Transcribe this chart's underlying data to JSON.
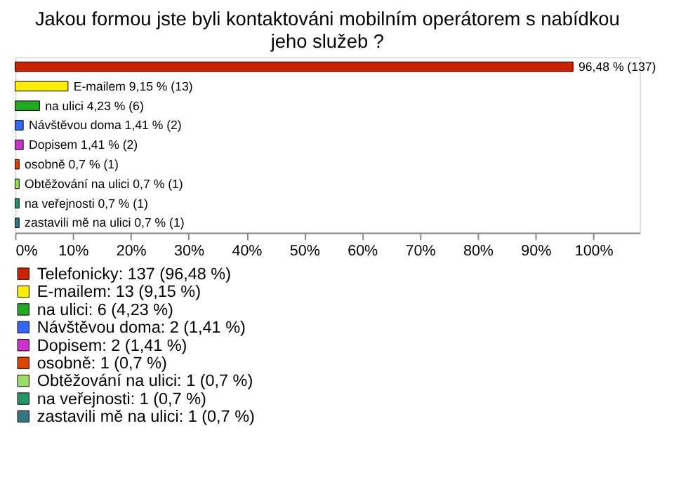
{
  "chart_data": {
    "type": "bar",
    "orientation": "horizontal",
    "stacked": true,
    "title": "Jakou formou jste byli kontaktováni mobilním operátorem s nabídkou\njeho služeb ?",
    "categories": [
      null,
      null,
      null,
      null,
      null,
      null,
      null,
      null,
      null
    ],
    "series": [
      {
        "name": "Telefonicky: 137 (96,48 %)",
        "color": "#cc2200",
        "values": [
          96.48,
          null,
          null,
          null,
          null,
          null,
          null,
          null,
          null
        ],
        "value_labels": [
          "96,48 % (137)",
          null,
          null,
          null,
          null,
          null,
          null,
          null,
          null
        ]
      },
      {
        "name": "E-mailem: 13 (9,15 %)",
        "color": "#ffee00",
        "values": [
          null,
          9.15,
          null,
          null,
          null,
          null,
          null,
          null,
          null
        ],
        "value_labels": [
          null,
          "E-mailem 9,15 % (13)",
          null,
          null,
          null,
          null,
          null,
          null,
          null
        ]
      },
      {
        "name": "na ulici: 6 (4,23 %)",
        "color": "#22aa22",
        "values": [
          null,
          null,
          4.23,
          null,
          null,
          null,
          null,
          null,
          null
        ],
        "value_labels": [
          null,
          null,
          "na ulici 4,23 % (6)",
          null,
          null,
          null,
          null,
          null,
          null
        ]
      },
      {
        "name": "Návštěvou doma: 2 (1,41 %)",
        "color": "#3366ff",
        "values": [
          null,
          null,
          null,
          1.41,
          null,
          null,
          null,
          null,
          null
        ],
        "value_labels": [
          null,
          null,
          null,
          "Návštěvou doma 1,41 % (2)",
          null,
          null,
          null,
          null,
          null
        ]
      },
      {
        "name": "Dopisem: 2 (1,41 %)",
        "color": "#cc33cc",
        "values": [
          null,
          null,
          null,
          null,
          1.41,
          null,
          null,
          null,
          null
        ],
        "value_labels": [
          null,
          null,
          null,
          null,
          "Dopisem 1,41 % (2)",
          null,
          null,
          null,
          null
        ]
      },
      {
        "name": "osobně: 1 (0,7 %)",
        "color": "#dd4400",
        "values": [
          null,
          null,
          null,
          null,
          null,
          0.7,
          null,
          null,
          null
        ],
        "value_labels": [
          null,
          null,
          null,
          null,
          null,
          "osobně 0,7 % (1)",
          null,
          null,
          null
        ]
      },
      {
        "name": "Obtěžování na ulici: 1 (0,7 %)",
        "color": "#99dd66",
        "values": [
          null,
          null,
          null,
          null,
          null,
          null,
          0.7,
          null,
          null
        ],
        "value_labels": [
          null,
          null,
          null,
          null,
          null,
          null,
          "Obtěžování na ulici 0,7 % (1)",
          null,
          null
        ]
      },
      {
        "name": "na veřejnosti: 1 (0,7 %)",
        "color": "#229966",
        "values": [
          null,
          null,
          null,
          null,
          null,
          null,
          null,
          0.7,
          null
        ],
        "value_labels": [
          null,
          null,
          null,
          null,
          null,
          null,
          null,
          "na veřejnosti 0,7 % (1)",
          null
        ]
      },
      {
        "name": "zastavili mě na ulici: 1 (0,7 %)",
        "color": "#337788",
        "values": [
          null,
          null,
          null,
          null,
          null,
          null,
          null,
          null,
          0.7
        ],
        "value_labels": [
          null,
          null,
          null,
          null,
          null,
          null,
          null,
          null,
          "zastavili mě na ulici 0,7 % (1)"
        ]
      }
    ],
    "xlim": [
      0,
      108
    ],
    "xticks": [
      {
        "value": 0,
        "label": "0%"
      },
      {
        "value": 10,
        "label": "10%"
      },
      {
        "value": 20,
        "label": "20%"
      },
      {
        "value": 30,
        "label": "30%"
      },
      {
        "value": 40,
        "label": "40%"
      },
      {
        "value": 50,
        "label": "50%"
      },
      {
        "value": 60,
        "label": "60%"
      },
      {
        "value": 70,
        "label": "70%"
      },
      {
        "value": 80,
        "label": "80%"
      },
      {
        "value": 90,
        "label": "90%"
      },
      {
        "value": 100,
        "label": "100%"
      }
    ],
    "tick_labels": "x",
    "legend": "bottom",
    "grid": false
  }
}
